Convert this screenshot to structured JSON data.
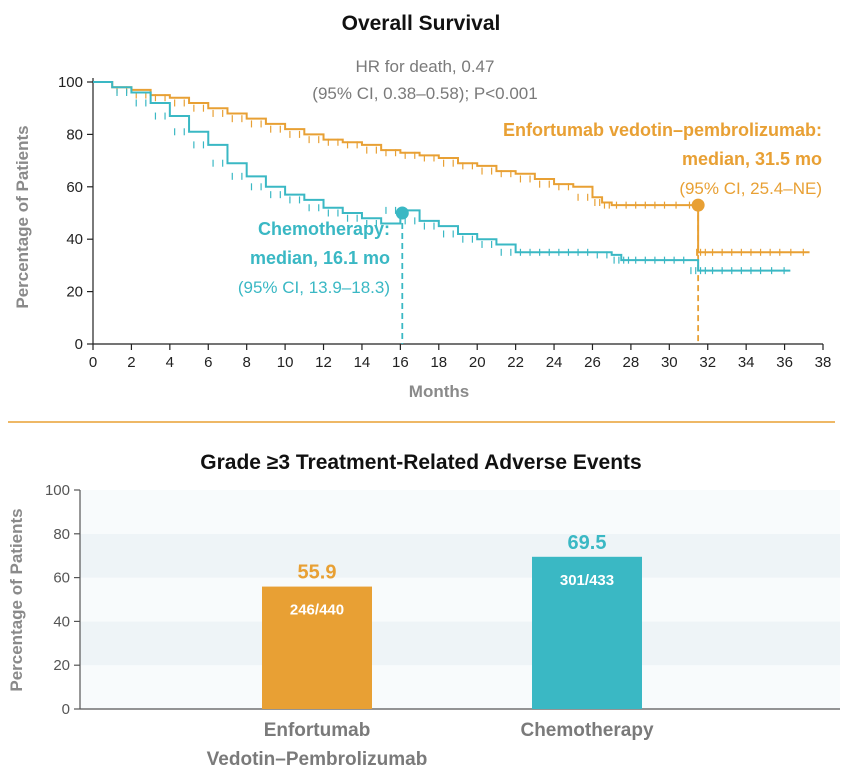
{
  "colors": {
    "ev": "#e8a034",
    "chemo": "#3ab8c4",
    "divider": "#e8a034",
    "band": "#eef4f7"
  },
  "chart_data": [
    {
      "type": "line",
      "title": "Overall Survival",
      "xlabel": "Months",
      "ylabel": "Percentage of Patients",
      "xlim": [
        0,
        38
      ],
      "ylim": [
        0,
        100
      ],
      "xticks": [
        0,
        2,
        4,
        6,
        8,
        10,
        12,
        14,
        16,
        18,
        20,
        22,
        24,
        26,
        28,
        30,
        32,
        34,
        36,
        38
      ],
      "yticks": [
        0,
        20,
        40,
        60,
        80,
        100
      ],
      "annotations": {
        "hr_line1": "HR for death, 0.47",
        "hr_line2": "(95% CI, 0.38–0.58); P<0.001",
        "ev_line1": "Enfortumab vedotin–pembrolizumab:",
        "ev_line2": "median, 31.5 mo",
        "ev_line3": "(95% CI, 25.4–NE)",
        "chemo_line1": "Chemotherapy:",
        "chemo_line2": "median, 16.1 mo",
        "chemo_line3": "(95% CI, 13.9–18.3)"
      },
      "medians": {
        "ev": [
          31.5,
          53
        ],
        "chemo": [
          16.1,
          50
        ]
      },
      "series": [
        {
          "name": "Enfortumab vedotin–pembrolizumab",
          "color": "#e8a034",
          "x": [
            0,
            1,
            2,
            3,
            4,
            5,
            6,
            7,
            8,
            9,
            10,
            11,
            12,
            13,
            14,
            15,
            16,
            17,
            18,
            19,
            20,
            21,
            22,
            23,
            24,
            25,
            26,
            26.5,
            27,
            28,
            29,
            30,
            31.4,
            31.5,
            32,
            33,
            34,
            35,
            36,
            37.3
          ],
          "y": [
            100,
            98,
            97,
            95,
            94,
            92,
            90,
            88,
            86,
            84,
            82,
            80,
            78,
            77,
            76,
            74,
            73,
            72,
            71,
            69,
            68,
            66,
            65,
            63,
            61,
            60,
            56,
            54,
            53,
            53,
            53,
            53,
            53,
            35,
            35,
            35,
            35,
            35,
            35,
            35
          ]
        },
        {
          "name": "Chemotherapy",
          "color": "#3ab8c4",
          "x": [
            0,
            1,
            2,
            3,
            4,
            5,
            6,
            7,
            8,
            9,
            10,
            11,
            12,
            13,
            14,
            15,
            16,
            17,
            18,
            19,
            20,
            21,
            22,
            23,
            24,
            25,
            26,
            27,
            27.5,
            28,
            29,
            30,
            31,
            31.5,
            32,
            33,
            34,
            35,
            36.3
          ],
          "y": [
            100,
            98,
            96,
            92,
            87,
            81,
            76,
            69,
            64,
            60,
            57,
            55,
            52,
            50,
            48,
            46,
            51,
            47,
            45,
            42,
            40,
            38,
            35,
            35,
            35,
            35,
            35,
            34,
            32,
            32,
            32,
            32,
            32,
            28,
            28,
            28,
            28,
            28,
            28
          ]
        }
      ]
    },
    {
      "type": "bar",
      "title": "Grade ≥3 Treatment-Related Adverse Events",
      "ylabel": "Percentage of Patients",
      "ylim": [
        0,
        100
      ],
      "yticks": [
        0,
        20,
        40,
        60,
        80,
        100
      ],
      "categories": [
        "Enfortumab Vedotin–Pembrolizumab",
        "Chemotherapy"
      ],
      "category_lines": [
        [
          "Enfortumab",
          "Vedotin–Pembrolizumab"
        ],
        [
          "Chemotherapy"
        ]
      ],
      "values": [
        55.9,
        69.5
      ],
      "value_labels": [
        "55.9",
        "69.5"
      ],
      "counts": [
        "246/440",
        "301/433"
      ],
      "colors": [
        "#e8a034",
        "#3ab8c4"
      ]
    }
  ]
}
